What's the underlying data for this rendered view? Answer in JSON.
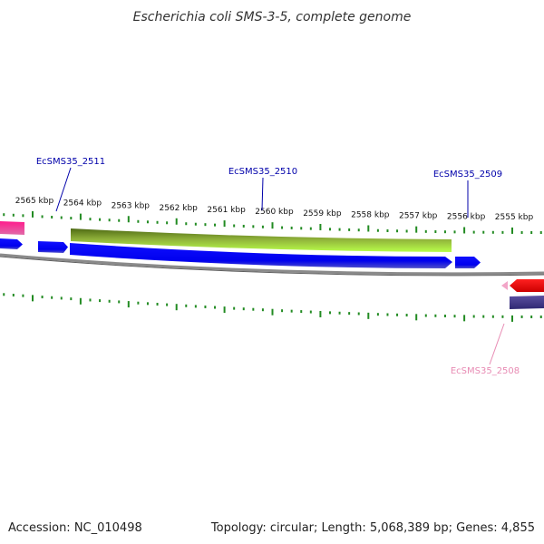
{
  "title": "Escherichia coli SMS-3-5, complete genome",
  "footer": {
    "accession": "Accession: NC_010498",
    "summary": "Topology: circular; Length: 5,068,389 bp; Genes: 4,855"
  },
  "ticks": [
    "2565 kbp",
    "2564 kbp",
    "2563 kbp",
    "2562 kbp",
    "2561 kbp",
    "2560 kbp",
    "2559 kbp",
    "2558 kbp",
    "2557 kbp",
    "2556 kbp",
    "2555 kbp"
  ],
  "genes": [
    {
      "name": "EcSMS35_2511",
      "color": "#0000aa"
    },
    {
      "name": "EcSMS35_2510",
      "color": "#0000aa"
    },
    {
      "name": "EcSMS35_2509",
      "color": "#0000aa"
    },
    {
      "name": "EcSMS35_2508",
      "color": "#e88cb4"
    }
  ],
  "colors": {
    "forward_cds": "#0000ff",
    "reverse_cds": "#ff0000",
    "feature_green": "#6b8e23",
    "feature_lime": "#adff2f",
    "feature_pink": "#ff1493",
    "feature_navy": "#483d8b",
    "backbone": "#808080",
    "tick_marks": "#228b22"
  }
}
